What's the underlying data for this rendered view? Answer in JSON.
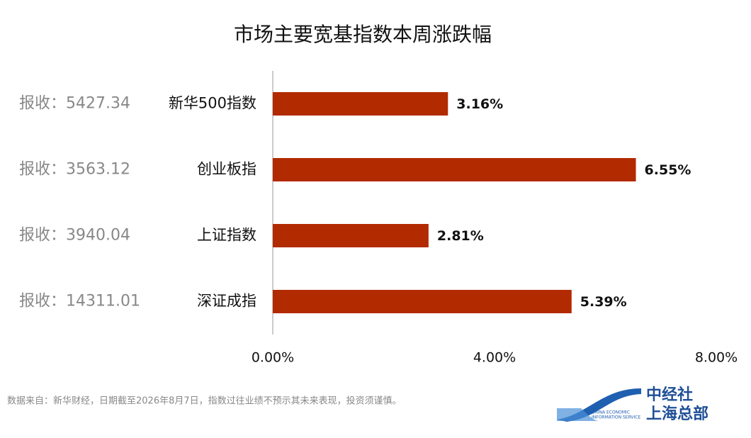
{
  "chart_data": {
    "type": "bar",
    "orientation": "horizontal",
    "title": "市场主要宽基指数本周涨跌幅",
    "categories": [
      "新华500指数",
      "创业板指",
      "上证指数",
      "深证成指"
    ],
    "values": [
      3.16,
      6.55,
      2.81,
      5.39
    ],
    "value_labels": [
      "3.16%",
      "6.55%",
      "2.81%",
      "5.39%"
    ],
    "annotations": [
      "报收：5427.34",
      "报收：3563.12",
      "报收：3940.04",
      "报收：14311.01"
    ],
    "color": "#b22a00",
    "xlim": [
      0,
      8
    ],
    "xticks": [
      {
        "value": 0,
        "label": "0.00%"
      },
      {
        "value": 4,
        "label": "4.00%"
      },
      {
        "value": 8,
        "label": "8.00%"
      }
    ],
    "grid": false,
    "source": "数据来自：新华财经，日期截至2026年8月7日，指数过往业绩不预示其未来表现，投资须谨慎。"
  },
  "logo": {
    "name": "中经社",
    "branch": "上海总部",
    "english_1": "CHINA ECONOMIC",
    "english_2": "INFORMATION SERVICE"
  }
}
